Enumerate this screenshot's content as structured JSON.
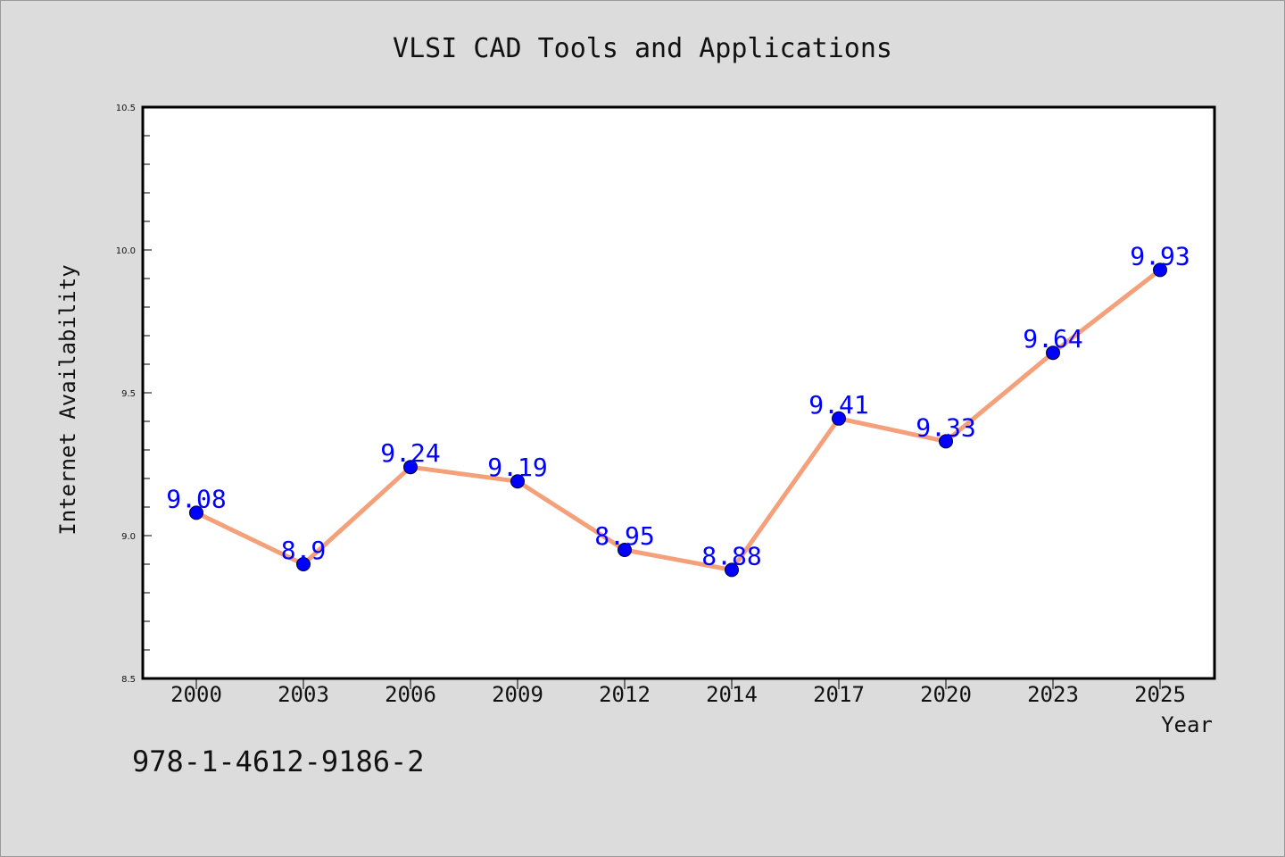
{
  "chart_data": {
    "type": "line",
    "title": "VLSI CAD Tools and Applications",
    "xlabel": "Year",
    "ylabel": "Internet Availability",
    "categories": [
      "2000",
      "2003",
      "2006",
      "2009",
      "2012",
      "2014",
      "2017",
      "2020",
      "2023",
      "2025"
    ],
    "series": [
      {
        "values": [
          9.08,
          8.9,
          9.24,
          9.19,
          8.95,
          8.88,
          9.41,
          9.33,
          9.64,
          9.93
        ],
        "data_labels": [
          "9.08",
          "8.9",
          "9.24",
          "9.19",
          "8.95",
          "8.88",
          "9.41",
          "9.33",
          "9.64",
          "9.93"
        ]
      }
    ],
    "ylim": [
      8.5,
      10.5
    ],
    "yticks": [
      8.5,
      9.0,
      9.5,
      10.0,
      10.5
    ],
    "ytick_labels": [
      "8.5",
      "9.0",
      "9.5",
      "10.0",
      "10.5"
    ],
    "grid": false,
    "legend": "none",
    "line_color": "#f4a07a",
    "marker_color": "#0000ff",
    "label_color": "#0000ff",
    "annotation": "978-1-4612-9186-2"
  }
}
